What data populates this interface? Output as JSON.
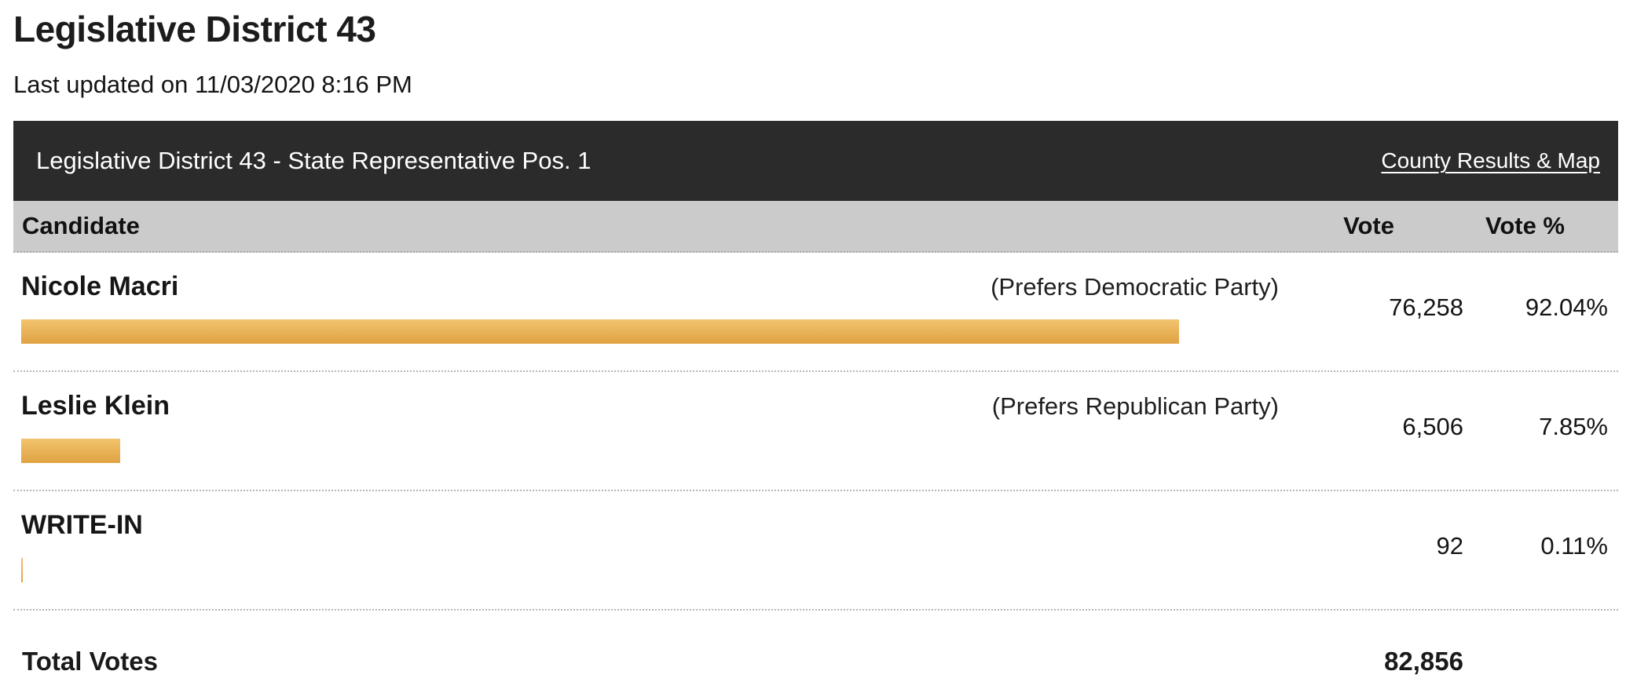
{
  "page": {
    "title": "Legislative District 43",
    "last_updated": "Last updated on 11/03/2020 8:16 PM"
  },
  "race": {
    "title": "Legislative District 43 - State Representative Pos. 1",
    "link_label": "County Results & Map"
  },
  "table": {
    "headers": {
      "candidate": "Candidate",
      "vote": "Vote",
      "vote_pct": "Vote %"
    },
    "rows": [
      {
        "candidate": "Nicole Macri",
        "party": "(Prefers Democratic Party)",
        "vote": "76,258",
        "vote_pct": "92.04%",
        "bar_pct": 92.04
      },
      {
        "candidate": "Leslie Klein",
        "party": "(Prefers Republican Party)",
        "vote": "6,506",
        "vote_pct": "7.85%",
        "bar_pct": 7.85
      },
      {
        "candidate": "WRITE-IN",
        "party": "",
        "vote": "92",
        "vote_pct": "0.11%",
        "bar_pct": 0.11
      }
    ],
    "total": {
      "label": "Total Votes",
      "value": "82,856"
    }
  },
  "colors": {
    "race_header_bg": "#2b2b2b",
    "col_header_bg": "#cbcbcb",
    "bar_top": "#f2c46e",
    "bar_bottom": "#dfa242"
  },
  "chart_data": {
    "type": "bar",
    "orientation": "horizontal",
    "title": "Legislative District 43 - State Representative Pos. 1",
    "categories": [
      "Nicole Macri",
      "Leslie Klein",
      "WRITE-IN"
    ],
    "series": [
      {
        "name": "Vote",
        "values": [
          76258,
          6506,
          92
        ]
      },
      {
        "name": "Vote %",
        "values": [
          92.04,
          7.85,
          0.11
        ]
      }
    ],
    "total_votes": 82856,
    "xlim": [
      0,
      100
    ],
    "grid": false,
    "legend": false
  }
}
